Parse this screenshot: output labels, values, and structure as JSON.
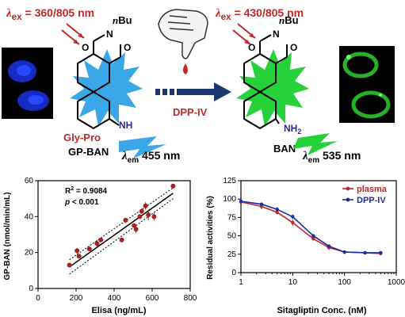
{
  "scheme": {
    "left_excitation": {
      "lambda": "λ",
      "sub": "ex",
      "value": " = 360/805 nm"
    },
    "right_excitation": {
      "lambda": "λ",
      "sub": "ex",
      "value": " = 430/805 nm"
    },
    "left_nbu": "nBu",
    "right_nbu": "nBu",
    "left_o1": "O",
    "left_n": "N",
    "left_o2": "O",
    "right_o1": "O",
    "right_n": "N",
    "right_o2": "O",
    "gly_pro": "Gly-Pro",
    "nh": "NH",
    "nh2": "NH",
    "nh2_sub": "2",
    "probe_name": "GP-BAN",
    "product_name": "BAN",
    "left_emission": {
      "lambda": "λ",
      "sub": "em",
      "value": " 455 nm"
    },
    "right_emission": {
      "lambda": "λ",
      "sub": "em",
      "value": " 535 nm"
    },
    "enzyme": "DPP-IV",
    "colors": {
      "probe": "#3aa8e8",
      "product": "#26d13a",
      "red": "#c0282a",
      "arrow": "#1c3670",
      "blue_text": "#2a2aa0"
    }
  },
  "chart_data": [
    {
      "type": "scatter",
      "xlabel": "Elisa (ng/mL)",
      "ylabel": "GP-BAN (nmol/min/mL)",
      "xlim": [
        0,
        800
      ],
      "ylim": [
        0,
        60
      ],
      "xticks": [
        "0",
        "200",
        "400",
        "600",
        "800"
      ],
      "yticks": [
        "0",
        "20",
        "40",
        "60"
      ],
      "annotation_r2": "R",
      "annotation_r2_sup": "2",
      "annotation_r2_value": " = 0.9084",
      "annotation_p": "p",
      "annotation_p_value": " < 0.001",
      "points": [
        {
          "x": 165,
          "y": 13,
          "err": 1
        },
        {
          "x": 205,
          "y": 21,
          "err": 1.5
        },
        {
          "x": 215,
          "y": 18,
          "err": 1
        },
        {
          "x": 270,
          "y": 22,
          "err": 1
        },
        {
          "x": 310,
          "y": 25,
          "err": 2
        },
        {
          "x": 330,
          "y": 27,
          "err": 1
        },
        {
          "x": 440,
          "y": 27,
          "err": 1
        },
        {
          "x": 460,
          "y": 38,
          "err": 1
        },
        {
          "x": 505,
          "y": 35,
          "err": 1
        },
        {
          "x": 515,
          "y": 33,
          "err": 2
        },
        {
          "x": 535,
          "y": 40,
          "err": 1
        },
        {
          "x": 545,
          "y": 43,
          "err": 1.5
        },
        {
          "x": 565,
          "y": 46,
          "err": 2
        },
        {
          "x": 580,
          "y": 41,
          "err": 3
        },
        {
          "x": 610,
          "y": 40,
          "err": 2
        },
        {
          "x": 710,
          "y": 57,
          "err": 1
        }
      ],
      "fit": {
        "x": [
          165,
          710
        ],
        "y": [
          12,
          53
        ]
      },
      "conf_upper": {
        "x": [
          165,
          710
        ],
        "y": [
          16,
          56
        ]
      },
      "conf_lower": {
        "x": [
          165,
          710
        ],
        "y": [
          8,
          50
        ]
      },
      "grid": false
    },
    {
      "type": "line",
      "xlabel": "Sitagliptin Conc. (nM)",
      "ylabel": "Residual activities (%)",
      "xscale": "log",
      "xlim": [
        1,
        1000
      ],
      "ylim": [
        0,
        125
      ],
      "xticks": [
        "1",
        "10",
        "100",
        "1000"
      ],
      "yticks": [
        "0",
        "25",
        "50",
        "75",
        "100",
        "125"
      ],
      "legend_position": "top-right",
      "series": [
        {
          "name": "plasma",
          "color": "#c0282a",
          "x": [
            1,
            2.5,
            5,
            10,
            25,
            50,
            100,
            250,
            500
          ],
          "y": [
            96,
            90,
            82,
            68,
            46,
            34,
            28,
            27,
            26
          ],
          "err": [
            2,
            4,
            3,
            4,
            2,
            3,
            2,
            2,
            2
          ]
        },
        {
          "name": "DPP-IV",
          "color": "#1c2fa0",
          "x": [
            1,
            2.5,
            5,
            10,
            25,
            50,
            100,
            250,
            500
          ],
          "y": [
            97,
            93,
            86,
            76,
            50,
            36,
            28,
            27,
            27
          ],
          "err": [
            2,
            2,
            3,
            3,
            2,
            2,
            2,
            2,
            2
          ]
        }
      ]
    }
  ]
}
